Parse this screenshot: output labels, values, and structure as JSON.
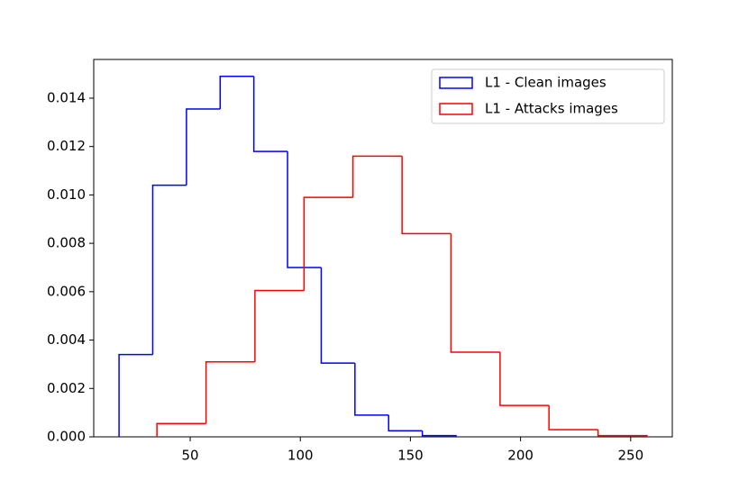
{
  "chart_data": {
    "type": "histogram",
    "xlim": [
      6.2,
      268.9
    ],
    "ylim": [
      0,
      0.0156
    ],
    "xticks": [
      50,
      100,
      150,
      200,
      250
    ],
    "yticks": [
      {
        "value": 0,
        "label": "0.000"
      },
      {
        "value": 0.002,
        "label": "0.002"
      },
      {
        "value": 0.004,
        "label": "0.004"
      },
      {
        "value": 0.006,
        "label": "0.006"
      },
      {
        "value": 0.008,
        "label": "0.008"
      },
      {
        "value": 0.01,
        "label": "0.010"
      },
      {
        "value": 0.012,
        "label": "0.012"
      },
      {
        "value": 0.014,
        "label": "0.014"
      }
    ],
    "legend": "upper right",
    "series": [
      {
        "name": "L1 - Clean images",
        "color": "#0000ff",
        "bins": [
          17.7,
          33.0,
          48.3,
          63.6,
          78.9,
          94.2,
          109.5,
          124.8,
          140.1,
          155.4,
          170.7
        ],
        "values": [
          0.0034,
          0.0104,
          0.01355,
          0.0149,
          0.0118,
          0.007,
          0.00305,
          0.0009,
          0.00025,
          5e-05
        ]
      },
      {
        "name": "L1 - Attacks images",
        "color": "#ff0000",
        "bins": [
          34.9,
          57.2,
          79.4,
          101.7,
          123.9,
          146.2,
          168.4,
          190.7,
          212.9,
          235.2,
          257.4
        ],
        "values": [
          0.00055,
          0.0031,
          0.00605,
          0.0099,
          0.0116,
          0.0084,
          0.0035,
          0.0013,
          0.0003,
          5e-05
        ]
      }
    ]
  }
}
